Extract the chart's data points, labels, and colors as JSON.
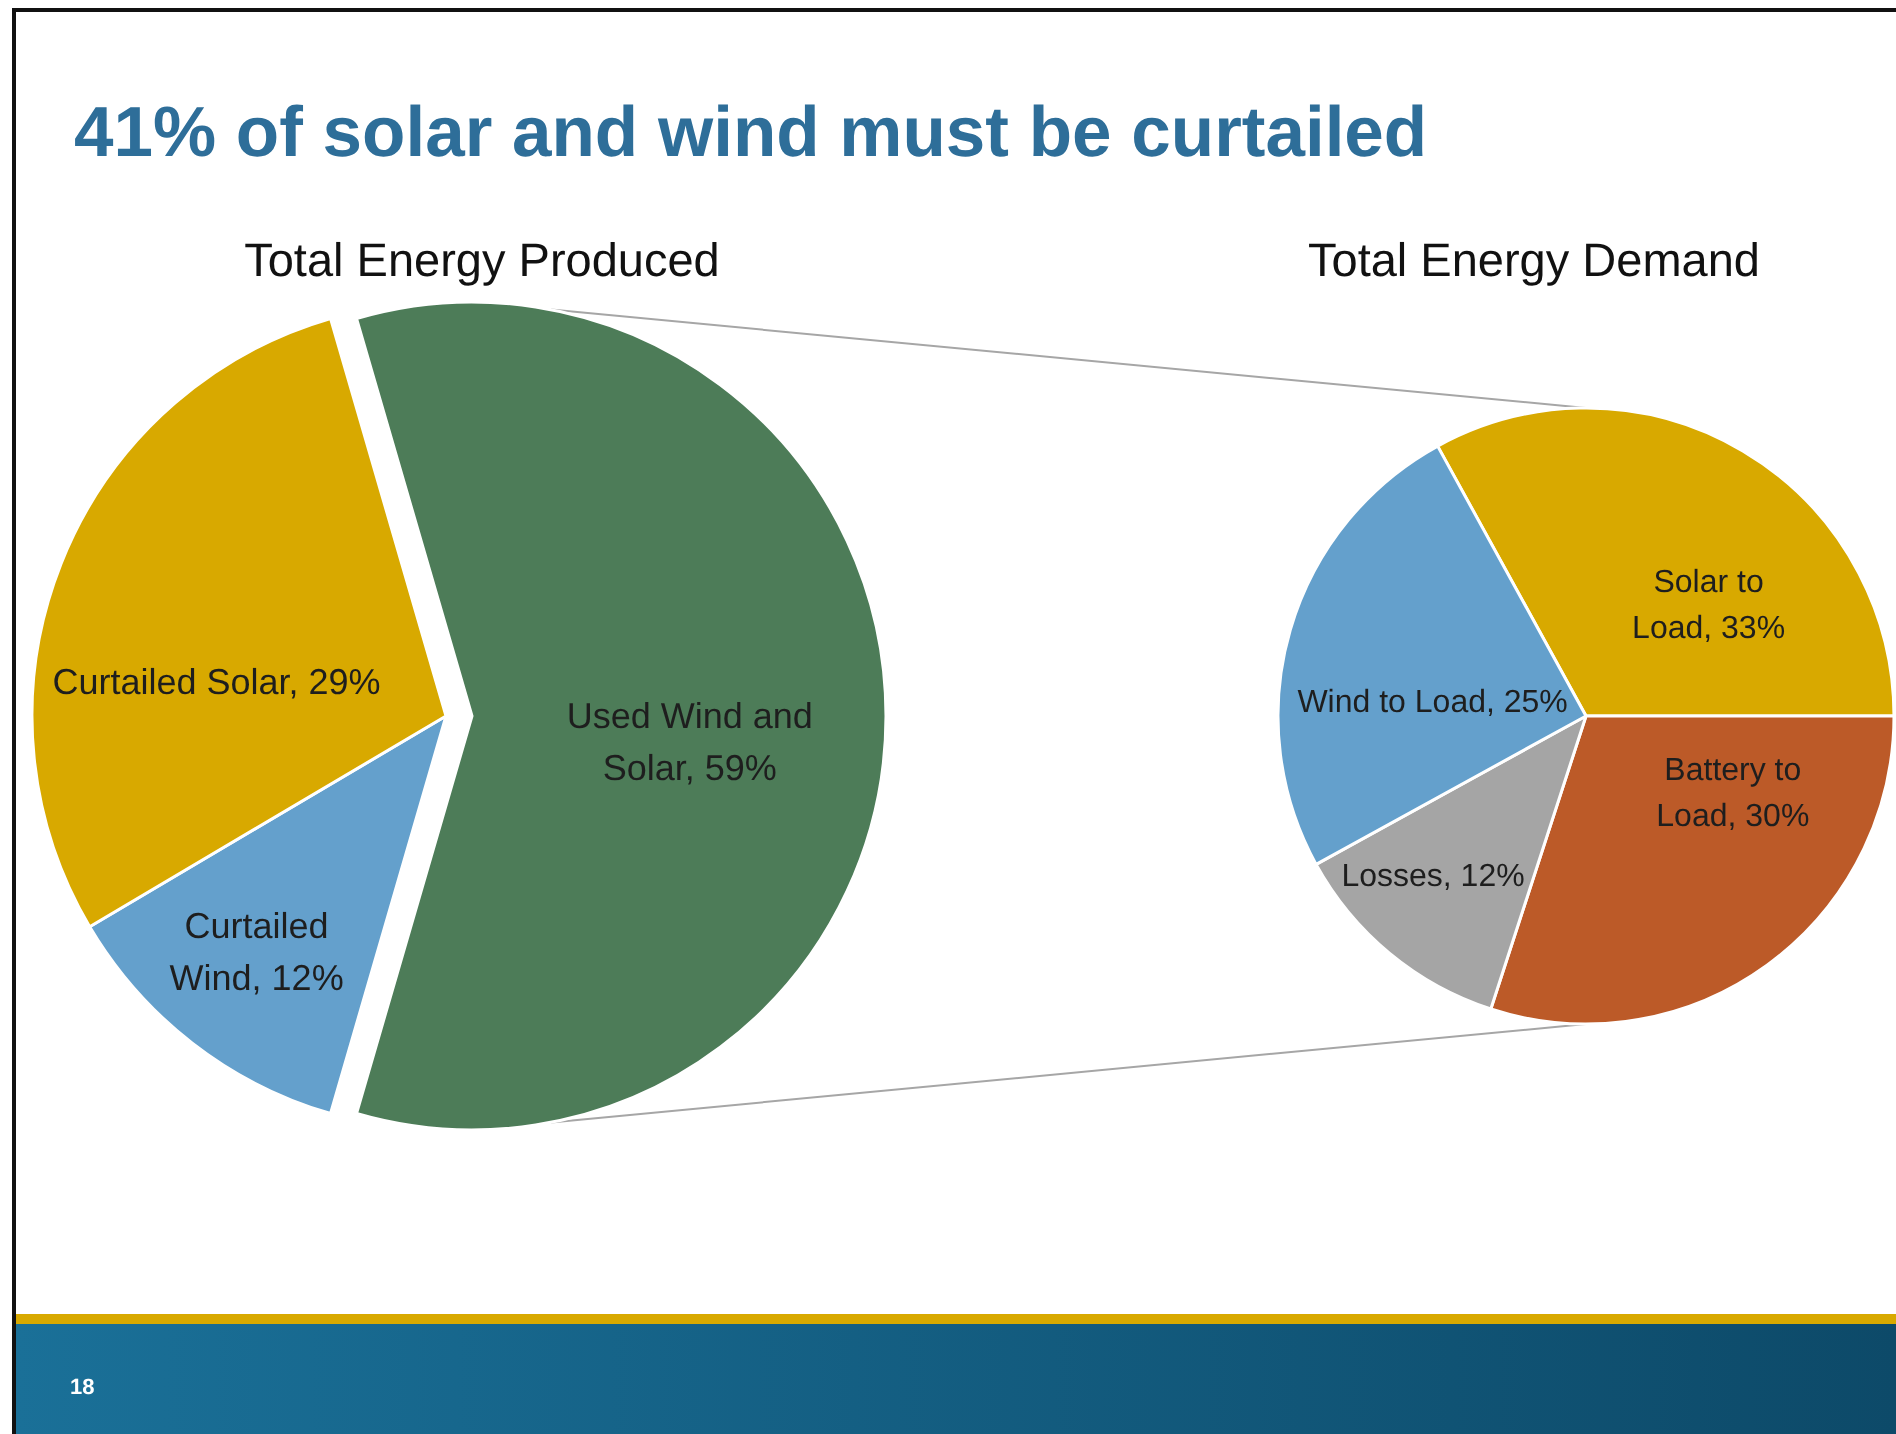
{
  "chart_data": [
    {
      "type": "other",
      "title": "41% of solar and wind must be curtailed",
      "annotations": [
        "18"
      ]
    },
    {
      "type": "pie",
      "title": "Total Energy Produced",
      "categories": [
        "Used Wind and Solar",
        "Curtailed Wind",
        "Curtailed Solar"
      ],
      "values": [
        59,
        12,
        29
      ],
      "colors": [
        "#4d7c58",
        "#64a0cc",
        "#d8a900"
      ],
      "value_labels": [
        "59%",
        "12%",
        "29%"
      ]
    },
    {
      "type": "pie",
      "title": "Total Energy Demand",
      "categories": [
        "Solar to Load",
        "Battery to Load",
        "Losses",
        "Wind to Load"
      ],
      "values": [
        33,
        30,
        12,
        25
      ],
      "colors": [
        "#d8a900",
        "#bc5a28",
        "#a5a5a5",
        "#64a0cc"
      ],
      "value_labels": [
        "33%",
        "30%",
        "12%",
        "25%"
      ]
    }
  ]
}
